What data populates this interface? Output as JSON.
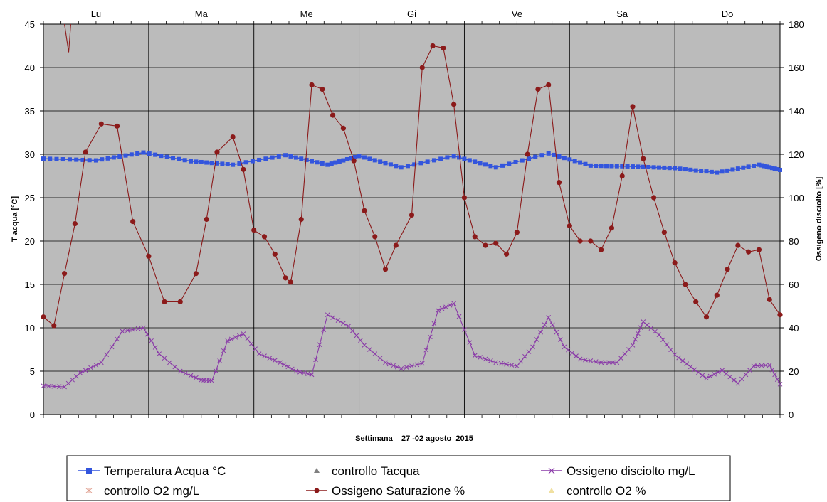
{
  "chart_data": {
    "type": "line",
    "title": "",
    "xlabel": "Settimana    27 -02 agosto  2015",
    "ylabel_left": "T acqua [°C]",
    "ylabel_right": "Ossigeno disciolto [%]",
    "ylim_left": [
      0,
      45
    ],
    "ylim_right": [
      0,
      180
    ],
    "yticks_left": [
      "0",
      "5",
      "10",
      "15",
      "20",
      "25",
      "30",
      "35",
      "40",
      "45"
    ],
    "yticks_right": [
      "0",
      "20",
      "40",
      "60",
      "80",
      "100",
      "120",
      "140",
      "160",
      "180"
    ],
    "days": [
      "Lu",
      "Ma",
      "Me",
      "Gi",
      "Ve",
      "Sa",
      "Do"
    ],
    "grid": true,
    "legend_position": "bottom",
    "x_unit": "days from start of week (Lu = 0)",
    "legend": [
      {
        "label": "Temperatura Acqua °C",
        "color": "#3355dd",
        "marker": "square"
      },
      {
        "label": "controllo Tacqua",
        "color": "#808080",
        "marker": "triangle"
      },
      {
        "label": "Ossigeno disciolto mg/L",
        "color": "#8a3aa8",
        "marker": "x"
      },
      {
        "label": "controllo O2 mg/L",
        "color": "#e0a090",
        "marker": "star"
      },
      {
        "label": "Ossigeno Saturazione %",
        "color": "#8b1a1a",
        "marker": "circle"
      },
      {
        "label": "controllo O2 %",
        "color": "#f0e0a0",
        "marker": "triangle"
      }
    ],
    "series": [
      {
        "name": "Temperatura Acqua °C",
        "axis": "left",
        "color": "#3355dd",
        "x": [
          0,
          0.5,
          0.95,
          1.4,
          1.8,
          2.3,
          2.7,
          3.0,
          3.4,
          3.9,
          4.3,
          4.8,
          5.2,
          5.6,
          6.0,
          6.4,
          6.8,
          7.0
        ],
        "y": [
          29.5,
          29.3,
          30.2,
          29.2,
          28.8,
          29.9,
          28.8,
          29.8,
          28.5,
          29.8,
          28.5,
          30.1,
          28.7,
          28.6,
          28.4,
          27.9,
          28.8,
          28.2
        ]
      },
      {
        "name": "Ossigeno Saturazione %",
        "axis": "right",
        "color": "#8b1a1a",
        "x": [
          0,
          0.1,
          0.2,
          0.3,
          0.4,
          0.55,
          0.7,
          0.85,
          1.0,
          1.15,
          1.3,
          1.45,
          1.55,
          1.65,
          1.8,
          1.9,
          2.0,
          2.1,
          2.2,
          2.3,
          2.35,
          2.45,
          2.55,
          2.65,
          2.75,
          2.85,
          2.95,
          3.05,
          3.15,
          3.25,
          3.35,
          3.5,
          3.6,
          3.7,
          3.8,
          3.9,
          4.0,
          4.1,
          4.2,
          4.3,
          4.4,
          4.5,
          4.6,
          4.7,
          4.8,
          4.9,
          5.0,
          5.1,
          5.2,
          5.3,
          5.4,
          5.5,
          5.6,
          5.7,
          5.8,
          5.9,
          6.0,
          6.1,
          6.2,
          6.3,
          6.4,
          6.5,
          6.6,
          6.7,
          6.8,
          6.9,
          7.0
        ],
        "y": [
          45,
          41,
          65,
          88,
          121,
          134,
          133,
          89,
          73,
          52,
          52,
          65,
          90,
          121,
          128,
          113,
          85,
          82,
          74,
          63,
          61,
          90,
          152,
          150,
          138,
          132,
          117,
          94,
          82,
          67,
          78,
          92,
          160,
          170,
          169,
          143,
          100,
          82,
          78,
          79,
          74,
          84,
          120,
          150,
          152,
          107,
          87,
          80,
          80,
          76,
          86,
          110,
          142,
          118,
          100,
          84,
          70,
          60,
          52,
          45,
          55,
          67,
          78,
          75,
          76,
          53,
          46
        ]
      },
      {
        "name": "Ossigeno disciolto mg/L",
        "axis": "left",
        "color": "#8a3aa8",
        "x": [
          0,
          0.2,
          0.35,
          0.55,
          0.75,
          0.95,
          1.1,
          1.3,
          1.5,
          1.6,
          1.75,
          1.9,
          2.05,
          2.25,
          2.4,
          2.55,
          2.7,
          2.9,
          3.05,
          3.25,
          3.4,
          3.6,
          3.75,
          3.9,
          4.1,
          4.3,
          4.5,
          4.65,
          4.8,
          4.95,
          5.1,
          5.3,
          5.45,
          5.6,
          5.7,
          5.85,
          6.0,
          6.15,
          6.3,
          6.45,
          6.6,
          6.75,
          6.9,
          7.0
        ],
        "y": [
          3.3,
          3.2,
          4.8,
          6.0,
          9.6,
          10.0,
          7.0,
          5.0,
          4.0,
          3.9,
          8.5,
          9.3,
          7.0,
          6.0,
          5.0,
          4.6,
          11.5,
          10.2,
          8.0,
          6.0,
          5.3,
          5.9,
          12.0,
          12.8,
          6.8,
          6.0,
          5.6,
          7.8,
          11.2,
          7.8,
          6.4,
          6.0,
          6.0,
          8.0,
          10.7,
          9.2,
          6.9,
          5.5,
          4.2,
          5.1,
          3.6,
          5.6,
          5.7,
          3.5
        ]
      }
    ],
    "annotation_spike": {
      "x": [
        0.2,
        0.24,
        0.26
      ],
      "y": [
        180,
        167,
        180
      ]
    }
  }
}
